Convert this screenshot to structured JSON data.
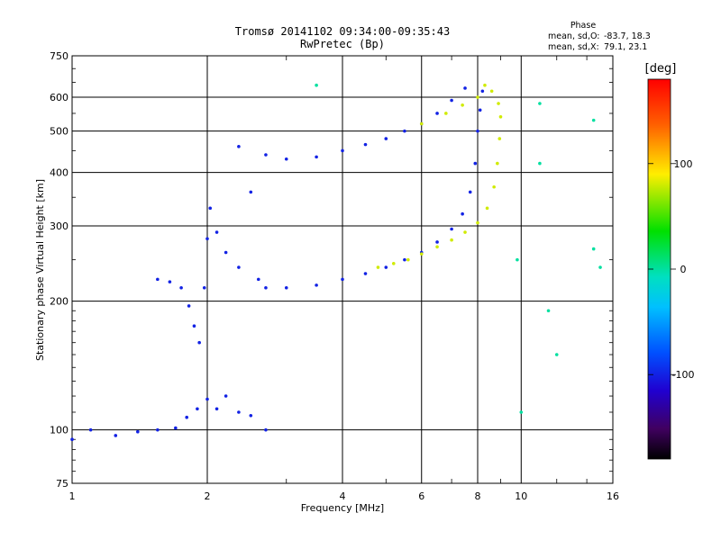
{
  "chart_data": {
    "type": "scatter",
    "title": "Tromsø 20141102 09:34:00-09:35:43",
    "subtitle": "RwPretec (Bp)",
    "xlabel": "Frequency [MHz]",
    "ylabel": "Stationary phase Virtual Height [km]",
    "x_scale": "log",
    "y_scale": "log",
    "xlim": [
      1,
      16
    ],
    "ylim": [
      75,
      750
    ],
    "x_ticks": [
      1,
      2,
      4,
      6,
      8,
      10,
      16
    ],
    "x_tick_labels": [
      "1",
      "2",
      "4",
      "6",
      "8",
      "10",
      "16"
    ],
    "y_ticks": [
      75,
      100,
      200,
      300,
      400,
      500,
      600,
      750
    ],
    "y_tick_labels": [
      "75",
      "100",
      "200",
      "300",
      "400",
      "500",
      "600",
      "750"
    ],
    "grid": true,
    "stats": {
      "header": "Phase",
      "line_o_label": "mean, sd,O:",
      "line_o_values": "-83.7, 18.3",
      "line_x_label": "mean, sd,X:",
      "line_x_values": "79.1, 23.1"
    },
    "colorbar": {
      "label": "[deg]",
      "min": -180,
      "max": 180,
      "ticks": [
        100,
        0,
        -100
      ],
      "tick_labels": [
        "100",
        "0",
        "-100"
      ]
    },
    "series": [
      {
        "mode": "O",
        "color_value": -100,
        "points": [
          {
            "x": 1.0,
            "y": 95
          },
          {
            "x": 1.1,
            "y": 100
          },
          {
            "x": 1.25,
            "y": 97
          },
          {
            "x": 1.4,
            "y": 99
          },
          {
            "x": 1.55,
            "y": 100
          },
          {
            "x": 1.7,
            "y": 101
          },
          {
            "x": 1.8,
            "y": 107
          },
          {
            "x": 1.9,
            "y": 112
          },
          {
            "x": 2.0,
            "y": 118
          },
          {
            "x": 2.1,
            "y": 112
          },
          {
            "x": 2.2,
            "y": 120
          },
          {
            "x": 2.35,
            "y": 110
          },
          {
            "x": 2.5,
            "y": 108
          },
          {
            "x": 2.7,
            "y": 100
          },
          {
            "x": 1.55,
            "y": 225
          },
          {
            "x": 1.65,
            "y": 222
          },
          {
            "x": 1.75,
            "y": 215
          },
          {
            "x": 1.82,
            "y": 195
          },
          {
            "x": 1.87,
            "y": 175
          },
          {
            "x": 1.92,
            "y": 160
          },
          {
            "x": 1.97,
            "y": 215
          },
          {
            "x": 2.0,
            "y": 280
          },
          {
            "x": 2.03,
            "y": 330
          },
          {
            "x": 2.1,
            "y": 290
          },
          {
            "x": 2.2,
            "y": 260
          },
          {
            "x": 2.35,
            "y": 240
          },
          {
            "x": 2.6,
            "y": 225
          },
          {
            "x": 2.7,
            "y": 215
          },
          {
            "x": 3.0,
            "y": 215
          },
          {
            "x": 3.5,
            "y": 218
          },
          {
            "x": 4.0,
            "y": 225
          },
          {
            "x": 4.5,
            "y": 232
          },
          {
            "x": 5.0,
            "y": 240
          },
          {
            "x": 5.5,
            "y": 250
          },
          {
            "x": 6.0,
            "y": 260
          },
          {
            "x": 6.5,
            "y": 275
          },
          {
            "x": 7.0,
            "y": 295
          },
          {
            "x": 7.4,
            "y": 320
          },
          {
            "x": 7.7,
            "y": 360
          },
          {
            "x": 7.9,
            "y": 420
          },
          {
            "x": 8.0,
            "y": 500
          },
          {
            "x": 8.1,
            "y": 560
          },
          {
            "x": 8.2,
            "y": 620
          },
          {
            "x": 2.35,
            "y": 460
          },
          {
            "x": 2.7,
            "y": 440
          },
          {
            "x": 3.0,
            "y": 430
          },
          {
            "x": 3.5,
            "y": 435
          },
          {
            "x": 4.0,
            "y": 450
          },
          {
            "x": 4.5,
            "y": 465
          },
          {
            "x": 5.0,
            "y": 480
          },
          {
            "x": 5.5,
            "y": 500
          },
          {
            "x": 6.0,
            "y": 520
          },
          {
            "x": 6.5,
            "y": 550
          },
          {
            "x": 7.0,
            "y": 590
          },
          {
            "x": 7.5,
            "y": 630
          },
          {
            "x": 2.5,
            "y": 360
          }
        ]
      },
      {
        "mode": "X",
        "color_value": 80,
        "points": [
          {
            "x": 4.8,
            "y": 240
          },
          {
            "x": 5.2,
            "y": 245
          },
          {
            "x": 5.6,
            "y": 250
          },
          {
            "x": 6.0,
            "y": 258
          },
          {
            "x": 6.5,
            "y": 268
          },
          {
            "x": 7.0,
            "y": 278
          },
          {
            "x": 7.5,
            "y": 290
          },
          {
            "x": 8.0,
            "y": 305
          },
          {
            "x": 8.4,
            "y": 330
          },
          {
            "x": 8.7,
            "y": 370
          },
          {
            "x": 8.85,
            "y": 420
          },
          {
            "x": 8.95,
            "y": 480
          },
          {
            "x": 9.0,
            "y": 540
          },
          {
            "x": 8.9,
            "y": 580
          },
          {
            "x": 8.6,
            "y": 620
          },
          {
            "x": 8.3,
            "y": 640
          },
          {
            "x": 6.0,
            "y": 520
          },
          {
            "x": 6.8,
            "y": 550
          },
          {
            "x": 7.4,
            "y": 575
          },
          {
            "x": 8.0,
            "y": 600
          }
        ]
      },
      {
        "mode": "scattered",
        "color_value": 0,
        "points": [
          {
            "x": 3.5,
            "y": 640
          },
          {
            "x": 9.8,
            "y": 250
          },
          {
            "x": 10.0,
            "y": 110
          },
          {
            "x": 11.0,
            "y": 580
          },
          {
            "x": 11.5,
            "y": 190
          },
          {
            "x": 12.0,
            "y": 150
          },
          {
            "x": 14.5,
            "y": 530
          },
          {
            "x": 15.0,
            "y": 240
          },
          {
            "x": 11.0,
            "y": 420
          },
          {
            "x": 14.5,
            "y": 265
          }
        ]
      }
    ]
  }
}
